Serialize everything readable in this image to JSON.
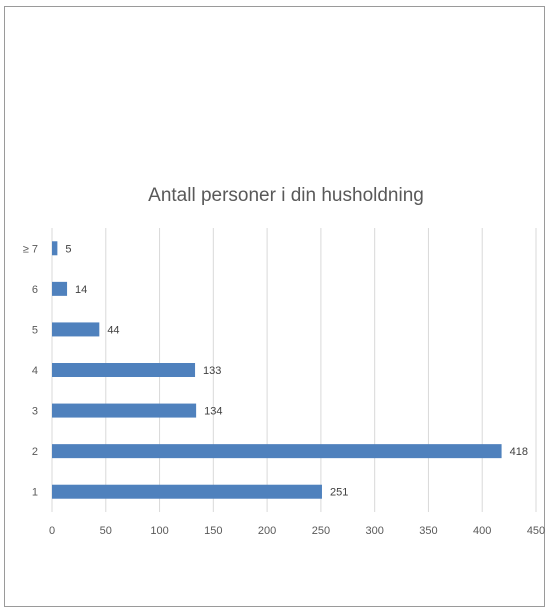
{
  "chart_data": {
    "type": "bar",
    "orientation": "horizontal",
    "title": "Antall personer i din husholdning",
    "categories": [
      "1",
      "2",
      "3",
      "4",
      "5",
      "6",
      "≥ 7"
    ],
    "values": [
      251,
      418,
      134,
      133,
      44,
      14,
      5
    ],
    "xlim": [
      0,
      450
    ],
    "xticks": [
      0,
      50,
      100,
      150,
      200,
      250,
      300,
      350,
      400,
      450
    ],
    "grid": true,
    "legend": "none",
    "bar_color": "#4f81bd"
  }
}
